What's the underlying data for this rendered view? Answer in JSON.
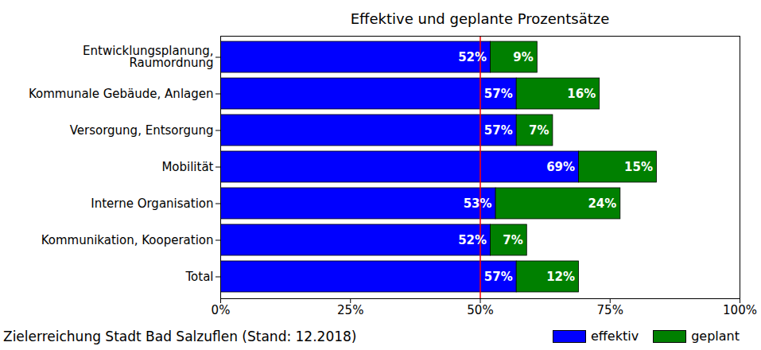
{
  "chart_data": {
    "type": "bar",
    "title": "Effektive und geplante Prozentsätze",
    "caption": "Zielerreichung Stadt Bad Salzuflen (Stand: 12.2018)",
    "orientation": "horizontal",
    "stacked": true,
    "data_labels": true,
    "legend": "bottom",
    "categories": [
      "Entwicklungsplanung,\nRaumordnung",
      "Kommunale Gebäude, Anlagen",
      "Versorgung, Entsorgung",
      "Mobilität",
      "Interne Organisation",
      "Kommunikation, Kooperation",
      "Total"
    ],
    "series": [
      {
        "name": "effektiv",
        "color": "#0000ff",
        "values": [
          52,
          57,
          57,
          69,
          53,
          52,
          57
        ],
        "value_labels": [
          "52%",
          "57%",
          "57%",
          "69%",
          "53%",
          "52%",
          "57%"
        ]
      },
      {
        "name": "geplant",
        "color": "#008000",
        "values": [
          9,
          16,
          7,
          15,
          24,
          7,
          12
        ],
        "value_labels": [
          "9%",
          "16%",
          "7%",
          "15%",
          "24%",
          "7%",
          "12%"
        ]
      }
    ],
    "xlim": [
      0,
      100
    ],
    "xticks": [
      {
        "value": 0,
        "label": "0%"
      },
      {
        "value": 25,
        "label": "25%"
      },
      {
        "value": 50,
        "label": "50%"
      },
      {
        "value": 75,
        "label": "75%"
      },
      {
        "value": 100,
        "label": "100%"
      }
    ],
    "reference_line": 50
  }
}
